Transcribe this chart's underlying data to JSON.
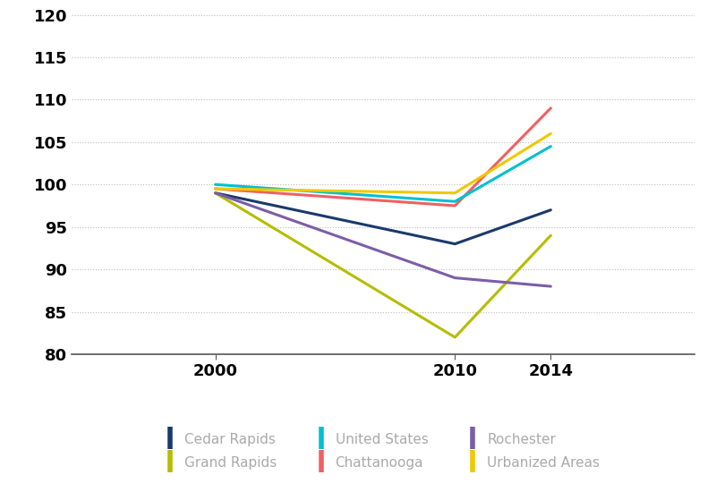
{
  "x_values": [
    2000,
    2010,
    2014
  ],
  "x_tick_labels": [
    "2000",
    "2010",
    "2014"
  ],
  "ylim": [
    80,
    120
  ],
  "yticks": [
    80,
    85,
    90,
    95,
    100,
    105,
    110,
    115,
    120
  ],
  "series": [
    {
      "label": "Cedar Rapids",
      "color": "#1a3a6b",
      "values": [
        99,
        93,
        97
      ]
    },
    {
      "label": "Chattanooga",
      "color": "#f06060",
      "values": [
        99.5,
        97.5,
        109
      ]
    },
    {
      "label": "Grand Rapids",
      "color": "#b5bd00",
      "values": [
        99,
        82,
        94
      ]
    },
    {
      "label": "Rochester",
      "color": "#7b5ea7",
      "values": [
        99,
        89,
        88
      ]
    },
    {
      "label": "United States",
      "color": "#00c0d0",
      "values": [
        100,
        98,
        104.5
      ]
    },
    {
      "label": "Urbanized Areas",
      "color": "#f0c800",
      "values": [
        99.5,
        99,
        106
      ]
    }
  ],
  "legend_order": [
    "Cedar Rapids",
    "Grand Rapids",
    "United States",
    "Chattanooga",
    "Rochester",
    "Urbanized Areas"
  ],
  "line_width": 2.2,
  "background_color": "#ffffff",
  "grid_color": "#bbbbbb",
  "tick_label_fontsize": 13,
  "legend_fontsize": 11
}
